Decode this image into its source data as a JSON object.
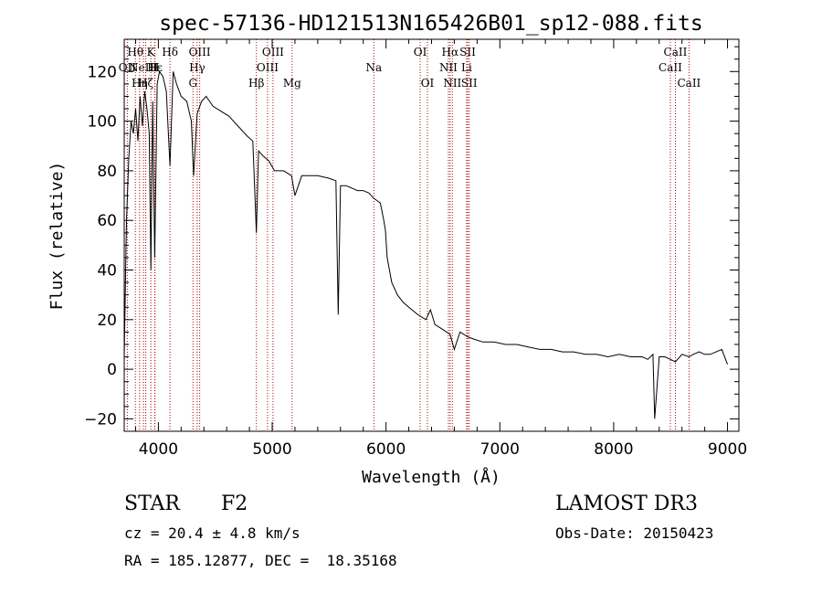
{
  "chart_data": {
    "type": "line",
    "title": "spec-57136-HD121513N165426B01_sp12-088.fits",
    "xlabel": "Wavelength (Å)",
    "ylabel": "Flux (relative)",
    "xlim": [
      3700,
      9100
    ],
    "ylim": [
      -25,
      133
    ],
    "xticks": [
      4000,
      5000,
      6000,
      7000,
      8000,
      9000
    ],
    "yticks": [
      -20,
      0,
      20,
      40,
      60,
      80,
      100,
      120
    ],
    "line_color": "#000000",
    "marker_color": "#b00000",
    "grid": false,
    "series": [
      {
        "x": [
          3700,
          3720,
          3740,
          3760,
          3780,
          3800,
          3820,
          3840,
          3860,
          3880,
          3900,
          3920,
          3934,
          3950,
          3968,
          3990,
          4010,
          4040,
          4070,
          4102,
          4130,
          4160,
          4200,
          4250,
          4290,
          4310,
          4340,
          4380,
          4420,
          4480,
          4550,
          4620,
          4700,
          4780,
          4830,
          4861,
          4880,
          4920,
          4970,
          5020,
          5100,
          5170,
          5200,
          5260,
          5320,
          5400,
          5500,
          5560,
          5580,
          5600,
          5650,
          5700,
          5750,
          5800,
          5850,
          5890,
          5920,
          5950,
          5980,
          5995,
          6010,
          6050,
          6100,
          6150,
          6200,
          6280,
          6350,
          6390,
          6430,
          6500,
          6563,
          6600,
          6650,
          6720,
          6780,
          6850,
          6950,
          7050,
          7150,
          7250,
          7350,
          7450,
          7550,
          7650,
          7750,
          7850,
          7950,
          8050,
          8150,
          8250,
          8300,
          8345,
          8360,
          8400,
          8450,
          8498,
          8542,
          8600,
          8662,
          8700,
          8750,
          8800,
          8850,
          8900,
          8950,
          9000
        ],
        "y": [
          5,
          60,
          85,
          100,
          95,
          105,
          92,
          110,
          98,
          112,
          105,
          95,
          40,
          108,
          45,
          115,
          120,
          118,
          112,
          82,
          120,
          115,
          110,
          108,
          100,
          78,
          103,
          108,
          110,
          106,
          104,
          102,
          98,
          94,
          92,
          55,
          88,
          86,
          84,
          80,
          80,
          78,
          70,
          78,
          78,
          78,
          77,
          76,
          22,
          74,
          74,
          73,
          72,
          72,
          71,
          69,
          68,
          67,
          60,
          56,
          45,
          35,
          30,
          27,
          25,
          22,
          20,
          24,
          18,
          16,
          14,
          8,
          15,
          13,
          12,
          11,
          11,
          10,
          10,
          9,
          8,
          8,
          7,
          7,
          6,
          6,
          5,
          6,
          5,
          5,
          4,
          6,
          -20,
          5,
          5,
          4,
          3,
          6,
          5,
          6,
          7,
          6,
          6,
          7,
          8,
          2
        ]
      }
    ],
    "lines": [
      {
        "wl": 3727,
        "label": "OII",
        "row": 1
      },
      {
        "wl": 3798,
        "label": "Hθ",
        "row": 0
      },
      {
        "wl": 3835,
        "label": "Hη",
        "row": 2
      },
      {
        "wl": 3869,
        "label": "NeIII",
        "row": 1
      },
      {
        "wl": 3889,
        "label": "Hζ",
        "row": 2
      },
      {
        "wl": 3934,
        "label": "K",
        "row": 0
      },
      {
        "wl": 3968,
        "label": "H",
        "row": 1
      },
      {
        "wl": 3970,
        "label": "Hε",
        "row": 1
      },
      {
        "wl": 4102,
        "label": "Hδ",
        "row": 0
      },
      {
        "wl": 4304,
        "label": "G",
        "row": 2
      },
      {
        "wl": 4341,
        "label": "Hγ",
        "row": 1
      },
      {
        "wl": 4363,
        "label": "OIII",
        "row": 0
      },
      {
        "wl": 4861,
        "label": "Hβ",
        "row": 2
      },
      {
        "wl": 4959,
        "label": "OIII",
        "row": 1
      },
      {
        "wl": 5007,
        "label": "OIII",
        "row": 0
      },
      {
        "wl": 5175,
        "label": "Mg",
        "row": 2
      },
      {
        "wl": 5893,
        "label": "Na",
        "row": 1
      },
      {
        "wl": 6300,
        "label": "OI",
        "row": 0
      },
      {
        "wl": 6364,
        "label": "OI",
        "row": 2
      },
      {
        "wl": 6548,
        "label": "NII",
        "row": 1
      },
      {
        "wl": 6563,
        "label": "Hα",
        "row": 0
      },
      {
        "wl": 6583,
        "label": "NII",
        "row": 2
      },
      {
        "wl": 6708,
        "label": "Li",
        "row": 1
      },
      {
        "wl": 6717,
        "label": "SII",
        "row": 0
      },
      {
        "wl": 6731,
        "label": "SII",
        "row": 2
      },
      {
        "wl": 8498,
        "label": "CaII",
        "row": 1
      },
      {
        "wl": 8542,
        "label": "CaII",
        "row": 0
      },
      {
        "wl": 8662,
        "label": "CaII",
        "row": 2
      }
    ]
  },
  "info": {
    "object_type": "STAR",
    "subclass": "F2",
    "survey": "LAMOST DR3",
    "cz": "cz = 20.4 ± 4.8 km/s",
    "obs_date": "Obs-Date: 20150423",
    "coords": "RA = 185.12877, DEC =  18.35168"
  }
}
